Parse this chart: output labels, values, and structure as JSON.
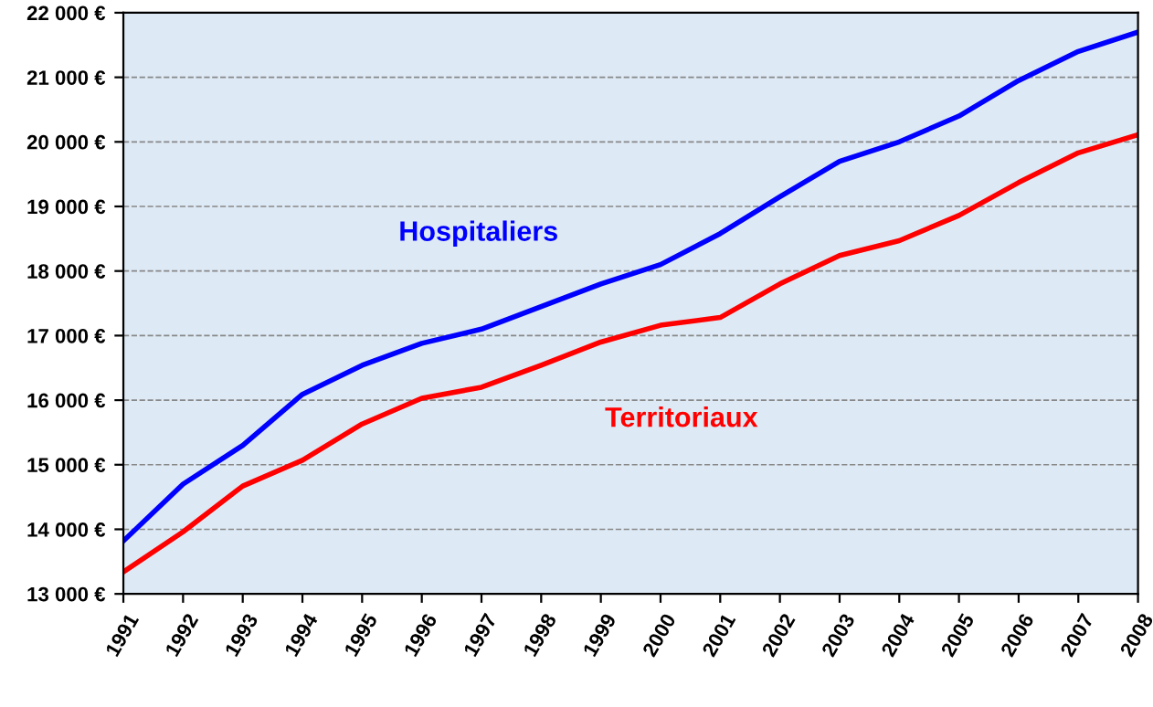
{
  "chart_data": {
    "type": "line",
    "x": [
      1991,
      1992,
      1993,
      1994,
      1995,
      1996,
      1997,
      1998,
      1999,
      2000,
      2001,
      2002,
      2003,
      2004,
      2005,
      2006,
      2007,
      2008
    ],
    "series": [
      {
        "name": "Hospitaliers",
        "color": "#0000ff",
        "values": [
          13820,
          14700,
          15300,
          16090,
          16540,
          16880,
          17100,
          17450,
          17800,
          18100,
          18580,
          19150,
          19700,
          20000,
          20400,
          20950,
          21400,
          21700
        ]
      },
      {
        "name": "Territoriaux",
        "color": "#ff0000",
        "values": [
          13340,
          13960,
          14670,
          15070,
          15630,
          16030,
          16200,
          16540,
          16900,
          17160,
          17280,
          17800,
          18240,
          18470,
          18860,
          19370,
          19830,
          20110
        ]
      }
    ],
    "xlim": [
      1991,
      2008
    ],
    "xticks": [
      1991,
      1992,
      1993,
      1994,
      1995,
      1996,
      1997,
      1998,
      1999,
      2000,
      2001,
      2002,
      2003,
      2004,
      2005,
      2006,
      2007,
      2008
    ],
    "ylim": [
      13000,
      22000
    ],
    "yticks": [
      {
        "value": 13000,
        "label": "13 000 €"
      },
      {
        "value": 14000,
        "label": "14 000 €"
      },
      {
        "value": 15000,
        "label": "15 000 €"
      },
      {
        "value": 16000,
        "label": "16 000 €"
      },
      {
        "value": 17000,
        "label": "17 000 €"
      },
      {
        "value": 18000,
        "label": "18 000 €"
      },
      {
        "value": 19000,
        "label": "19 000 €"
      },
      {
        "value": 20000,
        "label": "20 000 €"
      },
      {
        "value": 21000,
        "label": "21 000 €"
      },
      {
        "value": 22000,
        "label": "22 000 €"
      }
    ],
    "grid": "y",
    "legend": false,
    "marker": "none",
    "line_style": "solid"
  }
}
